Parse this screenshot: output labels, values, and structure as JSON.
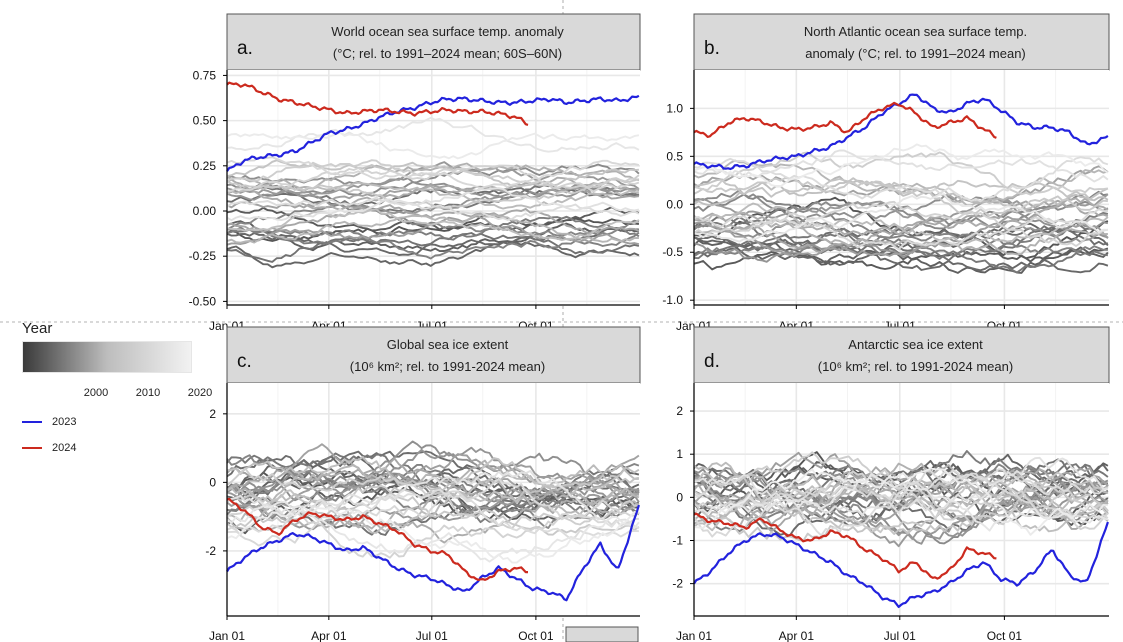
{
  "legend": {
    "title": "Year",
    "ticks": [
      "2000",
      "2010",
      "2020"
    ],
    "items": [
      {
        "label": "2023",
        "color": "#2222dd"
      },
      {
        "label": "2024",
        "color": "#cc2a1e"
      }
    ]
  },
  "colors": {
    "y2023": "#2222dd",
    "y2024": "#cc2a1e",
    "grid": "#e8e8e8",
    "header": "#d9d9d9"
  },
  "chart_data": [
    {
      "id": "a",
      "type": "line",
      "panel_label": "a.",
      "title_line1": "World ocean sea surface temp. anomaly",
      "title_line2": "(°C; rel. to 1991–2024 mean; 60S–60N)",
      "x_ticks": [
        "Jan 01",
        "Apr 01",
        "Jul 01",
        "Oct 01"
      ],
      "x_tick_days": [
        0,
        90,
        181,
        273
      ],
      "xlim": [
        0,
        365
      ],
      "ylim": [
        -0.52,
        0.78
      ],
      "y_ticks": [
        -0.5,
        -0.25,
        0,
        0.25,
        0.5,
        0.75
      ],
      "y_tick_labels": [
        "-0.50",
        "-0.25",
        "0.00",
        "0.25",
        "0.50",
        "0.75"
      ],
      "series_2023": {
        "name": "2023",
        "x": [
          0,
          15,
          30,
          45,
          60,
          75,
          90,
          105,
          120,
          135,
          150,
          165,
          180,
          195,
          210,
          225,
          240,
          255,
          270,
          285,
          300,
          315,
          330,
          345,
          364
        ],
        "y": [
          0.22,
          0.28,
          0.3,
          0.31,
          0.33,
          0.38,
          0.43,
          0.45,
          0.48,
          0.52,
          0.55,
          0.57,
          0.6,
          0.62,
          0.62,
          0.61,
          0.6,
          0.6,
          0.61,
          0.62,
          0.6,
          0.61,
          0.62,
          0.61,
          0.63
        ]
      },
      "series_2024": {
        "name": "2024",
        "x": [
          0,
          15,
          30,
          45,
          60,
          75,
          90,
          105,
          120,
          135,
          150,
          165,
          180,
          195,
          210,
          225,
          240,
          255,
          266
        ],
        "y": [
          0.7,
          0.7,
          0.66,
          0.62,
          0.6,
          0.58,
          0.56,
          0.54,
          0.55,
          0.56,
          0.55,
          0.54,
          0.55,
          0.56,
          0.55,
          0.55,
          0.54,
          0.52,
          0.48
        ]
      },
      "background_years": {
        "start": 1991,
        "end": 2022,
        "base": [
          -0.32,
          0.42
        ],
        "amplitude": 0.035
      }
    },
    {
      "id": "b",
      "type": "line",
      "panel_label": "b.",
      "title_line1": "North Atlantic ocean sea surface temp.",
      "title_line2": "anomaly (°C; rel. to 1991–2024 mean)",
      "x_ticks": [
        "Jan 01",
        "Apr 01",
        "Jul 01",
        "Oct 01"
      ],
      "x_tick_days": [
        0,
        90,
        181,
        273
      ],
      "xlim": [
        0,
        365
      ],
      "ylim": [
        -1.05,
        1.4
      ],
      "y_ticks": [
        -1,
        -0.5,
        0,
        0.5,
        1
      ],
      "y_tick_labels": [
        "-1.0",
        "-0.5",
        "0.0",
        "0.5",
        "1.0"
      ],
      "series_2023": {
        "name": "2023",
        "x": [
          0,
          15,
          30,
          45,
          60,
          75,
          90,
          105,
          120,
          135,
          150,
          165,
          180,
          195,
          210,
          225,
          240,
          255,
          270,
          285,
          300,
          315,
          330,
          345,
          364
        ],
        "y": [
          0.42,
          0.4,
          0.38,
          0.4,
          0.45,
          0.48,
          0.5,
          0.55,
          0.6,
          0.7,
          0.8,
          0.95,
          1.05,
          1.15,
          1.0,
          0.95,
          1.05,
          1.1,
          0.98,
          0.85,
          0.8,
          0.8,
          0.75,
          0.62,
          0.7
        ]
      },
      "series_2024": {
        "name": "2024",
        "x": [
          0,
          15,
          30,
          45,
          60,
          75,
          90,
          105,
          120,
          135,
          150,
          165,
          180,
          195,
          210,
          225,
          240,
          255,
          266
        ],
        "y": [
          0.75,
          0.72,
          0.85,
          0.9,
          0.86,
          0.8,
          0.78,
          0.8,
          0.85,
          0.75,
          0.9,
          1.0,
          1.05,
          0.95,
          0.8,
          0.85,
          0.9,
          0.78,
          0.7
        ]
      },
      "background_years": {
        "start": 1991,
        "end": 2022,
        "base": [
          -0.75,
          0.45
        ],
        "amplitude": 0.09
      }
    },
    {
      "id": "c",
      "type": "line",
      "panel_label": "c.",
      "title_line1": "Global sea ice extent",
      "title_line2": "(10⁶ km²; rel. to 1991-2024 mean)",
      "x_ticks": [
        "Jan 01",
        "Apr 01",
        "Jul 01",
        "Oct 01"
      ],
      "x_tick_days": [
        0,
        90,
        181,
        273
      ],
      "xlim": [
        0,
        365
      ],
      "ylim": [
        -3.9,
        2.9
      ],
      "y_ticks": [
        -2,
        0,
        2
      ],
      "y_tick_labels": [
        "-2",
        "0",
        "2"
      ],
      "series_2023": {
        "name": "2023",
        "x": [
          0,
          15,
          30,
          45,
          60,
          75,
          90,
          105,
          120,
          135,
          150,
          165,
          180,
          195,
          210,
          225,
          240,
          255,
          270,
          285,
          300,
          315,
          330,
          345,
          364
        ],
        "y": [
          -2.6,
          -2.2,
          -1.9,
          -1.7,
          -1.5,
          -1.6,
          -1.8,
          -2.0,
          -1.9,
          -2.2,
          -2.5,
          -2.7,
          -2.8,
          -3.0,
          -3.2,
          -2.8,
          -2.5,
          -2.8,
          -3.1,
          -3.2,
          -3.4,
          -2.5,
          -1.8,
          -2.6,
          -0.7
        ]
      },
      "series_2024": {
        "name": "2024",
        "x": [
          0,
          15,
          30,
          45,
          60,
          75,
          90,
          105,
          120,
          135,
          150,
          165,
          180,
          195,
          210,
          225,
          240,
          255,
          266
        ],
        "y": [
          -0.5,
          -0.8,
          -1.3,
          -1.5,
          -1.1,
          -0.9,
          -1.0,
          -1.1,
          -1.0,
          -1.2,
          -1.4,
          -1.8,
          -2.0,
          -2.1,
          -2.6,
          -2.9,
          -2.6,
          -2.5,
          -2.6
        ]
      },
      "background_years": {
        "start": 1991,
        "end": 2022,
        "base": [
          0.8,
          -1.6
        ],
        "amplitude": 0.35
      }
    },
    {
      "id": "d",
      "type": "line",
      "panel_label": "d.",
      "title_line1": "Antarctic sea ice extent",
      "title_line2": "(10⁶ km²; rel. to 1991-2024 mean)",
      "x_ticks": [
        "Jan 01",
        "Apr 01",
        "Jul 01",
        "Oct 01"
      ],
      "x_tick_days": [
        0,
        90,
        181,
        273
      ],
      "xlim": [
        0,
        365
      ],
      "ylim": [
        -2.75,
        2.65
      ],
      "y_ticks": [
        -2,
        -1,
        0,
        1,
        2
      ],
      "y_tick_labels": [
        "-2",
        "-1",
        "0",
        "1",
        "2"
      ],
      "series_2023": {
        "name": "2023",
        "x": [
          0,
          15,
          30,
          45,
          60,
          75,
          90,
          105,
          120,
          135,
          150,
          165,
          180,
          195,
          210,
          225,
          240,
          255,
          270,
          285,
          300,
          315,
          330,
          345,
          364
        ],
        "y": [
          -2.0,
          -1.7,
          -1.3,
          -1.0,
          -0.85,
          -0.9,
          -1.1,
          -1.3,
          -1.5,
          -1.8,
          -2.0,
          -2.3,
          -2.5,
          -2.3,
          -2.2,
          -2.0,
          -1.7,
          -1.5,
          -1.9,
          -2.0,
          -1.7,
          -1.2,
          -1.8,
          -2.0,
          -0.6
        ]
      },
      "series_2024": {
        "name": "2024",
        "x": [
          0,
          15,
          30,
          45,
          60,
          75,
          90,
          105,
          120,
          135,
          150,
          165,
          180,
          195,
          210,
          225,
          240,
          255,
          266
        ],
        "y": [
          -0.4,
          -0.55,
          -0.6,
          -0.7,
          -0.5,
          -0.75,
          -0.95,
          -1.0,
          -0.8,
          -0.9,
          -1.2,
          -1.4,
          -1.7,
          -1.5,
          -1.9,
          -1.7,
          -1.2,
          -1.3,
          -1.4
        ]
      },
      "background_years": {
        "start": 1991,
        "end": 2022,
        "base": [
          0.4,
          -0.3
        ],
        "amplitude": 0.32
      }
    }
  ]
}
